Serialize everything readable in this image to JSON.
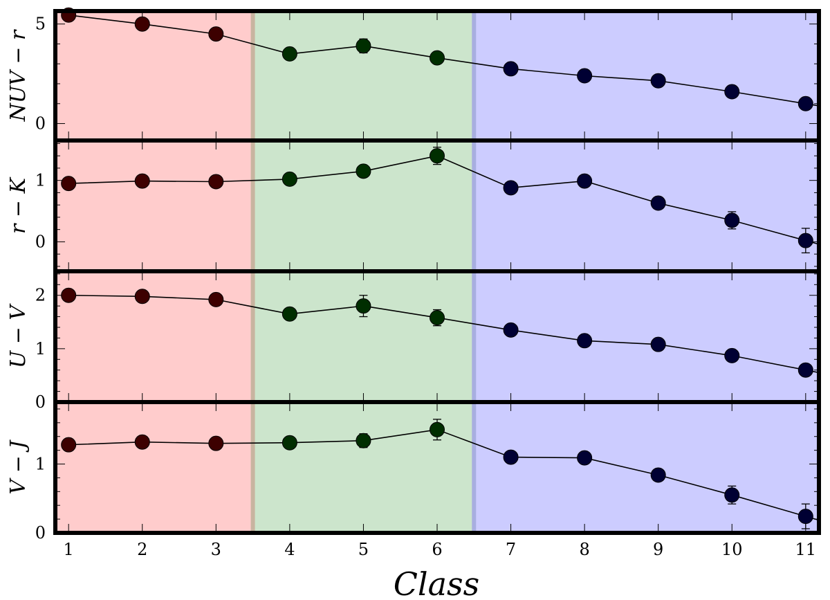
{
  "chart_data": {
    "type": "scatter",
    "xlabel": "Class",
    "x": [
      1,
      2,
      3,
      4,
      5,
      6,
      7,
      8,
      9,
      10,
      11
    ],
    "xlim": [
      0.82,
      11.18
    ],
    "xticks": [
      "1",
      "2",
      "3",
      "4",
      "5",
      "6",
      "7",
      "8",
      "9",
      "10",
      "11"
    ],
    "shaded_regions": [
      {
        "x_range": [
          0.82,
          3.5
        ],
        "color": "#ffcccc"
      },
      {
        "x_range": [
          3.5,
          6.5
        ],
        "color": "#cce5cc"
      },
      {
        "x_range": [
          6.5,
          11.18
        ],
        "color": "#ccccff"
      }
    ],
    "marker_colors": [
      "#3d0000",
      "#3d0000",
      "#3d0000",
      "#002e00",
      "#002e00",
      "#002e00",
      "#000033",
      "#000033",
      "#000033",
      "#000033",
      "#000033"
    ],
    "panels": [
      {
        "ylabel": "NUV − r",
        "ylim": [
          -0.85,
          5.65
        ],
        "yticks": [
          "0",
          "5"
        ],
        "ytick_values": [
          0,
          5
        ],
        "values": [
          5.45,
          5.0,
          4.5,
          3.5,
          3.9,
          3.3,
          2.75,
          2.4,
          2.15,
          1.6,
          1.0
        ],
        "errors": [
          0.15,
          0.12,
          0.12,
          0.15,
          0.35,
          0.15,
          0.1,
          0.1,
          0.1,
          0.1,
          0.12
        ]
      },
      {
        "ylabel": "r − K",
        "ylim": [
          -0.48,
          1.65
        ],
        "yticks": [
          "0",
          "1"
        ],
        "ytick_values": [
          0,
          1
        ],
        "values": [
          0.95,
          0.99,
          0.98,
          1.02,
          1.15,
          1.4,
          0.88,
          0.99,
          0.63,
          0.35,
          0.02
        ],
        "errors": [
          0.03,
          0.03,
          0.03,
          0.05,
          0.08,
          0.14,
          0.05,
          0.07,
          0.07,
          0.14,
          0.2
        ]
      },
      {
        "ylabel": "U − V",
        "ylim": [
          0.0,
          2.45
        ],
        "yticks": [
          "0",
          "1",
          "2"
        ],
        "ytick_values": [
          0,
          1,
          2
        ],
        "values": [
          2.0,
          1.98,
          1.92,
          1.65,
          1.8,
          1.58,
          1.35,
          1.15,
          1.08,
          0.87,
          0.6
        ],
        "errors": [
          0.03,
          0.03,
          0.05,
          0.08,
          0.2,
          0.15,
          0.08,
          0.06,
          0.04,
          0.03,
          0.04
        ]
      },
      {
        "ylabel": "V − J",
        "ylim": [
          0.0,
          1.9
        ],
        "yticks": [
          "0",
          "1"
        ],
        "ytick_values": [
          0,
          1
        ],
        "values": [
          1.28,
          1.32,
          1.3,
          1.31,
          1.34,
          1.5,
          1.1,
          1.09,
          0.84,
          0.55,
          0.24
        ],
        "errors": [
          0.06,
          0.04,
          0.07,
          0.08,
          0.1,
          0.15,
          0.07,
          0.07,
          0.06,
          0.13,
          0.18
        ]
      }
    ]
  }
}
